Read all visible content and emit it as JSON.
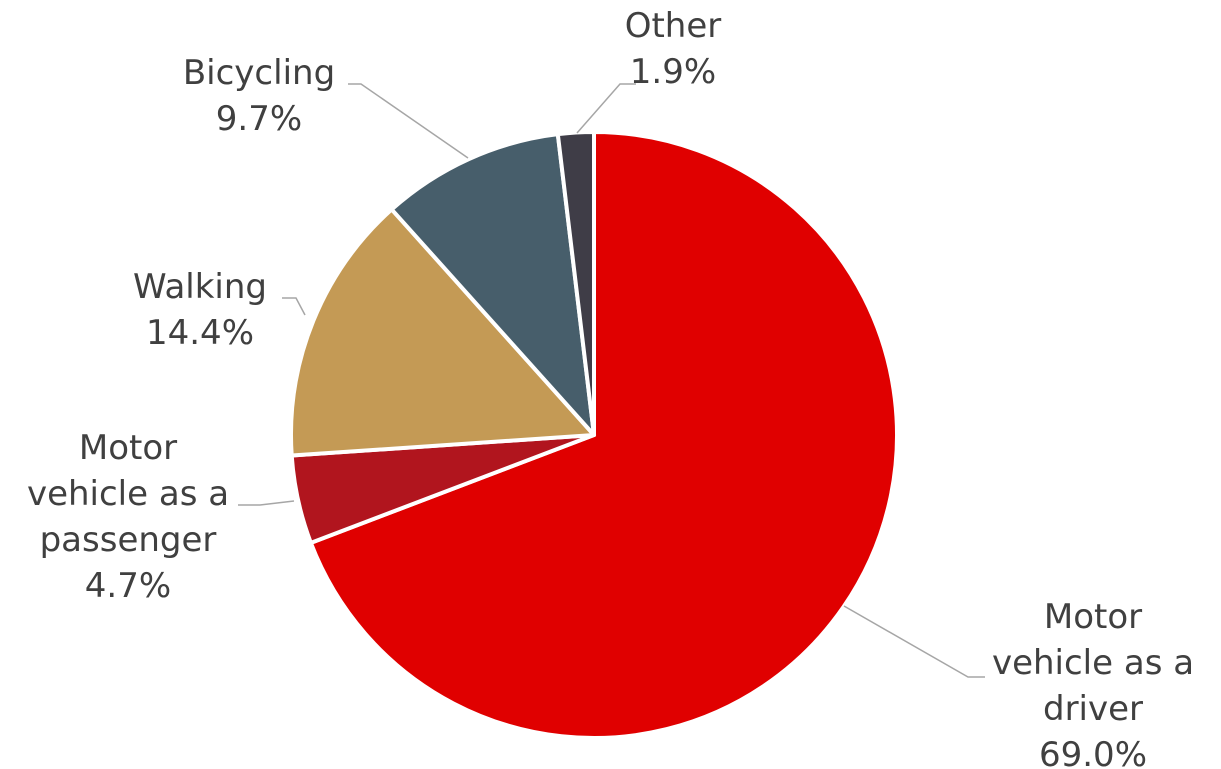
{
  "chart_data": {
    "type": "pie",
    "title": "",
    "start_angle_deg": 0,
    "direction": "clockwise",
    "slices": [
      {
        "label_lines": [
          "Motor",
          "vehicle as a",
          "driver"
        ],
        "value": 69.0,
        "value_label": "69.0%",
        "color": "#e00000"
      },
      {
        "label_lines": [
          "Motor",
          "vehicle as a",
          "passenger"
        ],
        "value": 4.7,
        "value_label": "4.7%",
        "color": "#b1151e"
      },
      {
        "label_lines": [
          "Walking"
        ],
        "value": 14.4,
        "value_label": "14.4%",
        "color": "#c49a55"
      },
      {
        "label_lines": [
          "Bicycling"
        ],
        "value": 9.7,
        "value_label": "9.7%",
        "color": "#475e6b"
      },
      {
        "label_lines": [
          "Other"
        ],
        "value": 1.9,
        "value_label": "1.9%",
        "color": "#3f3d47"
      }
    ],
    "legend": "none",
    "data_labels": "outside-with-leader-lines"
  }
}
